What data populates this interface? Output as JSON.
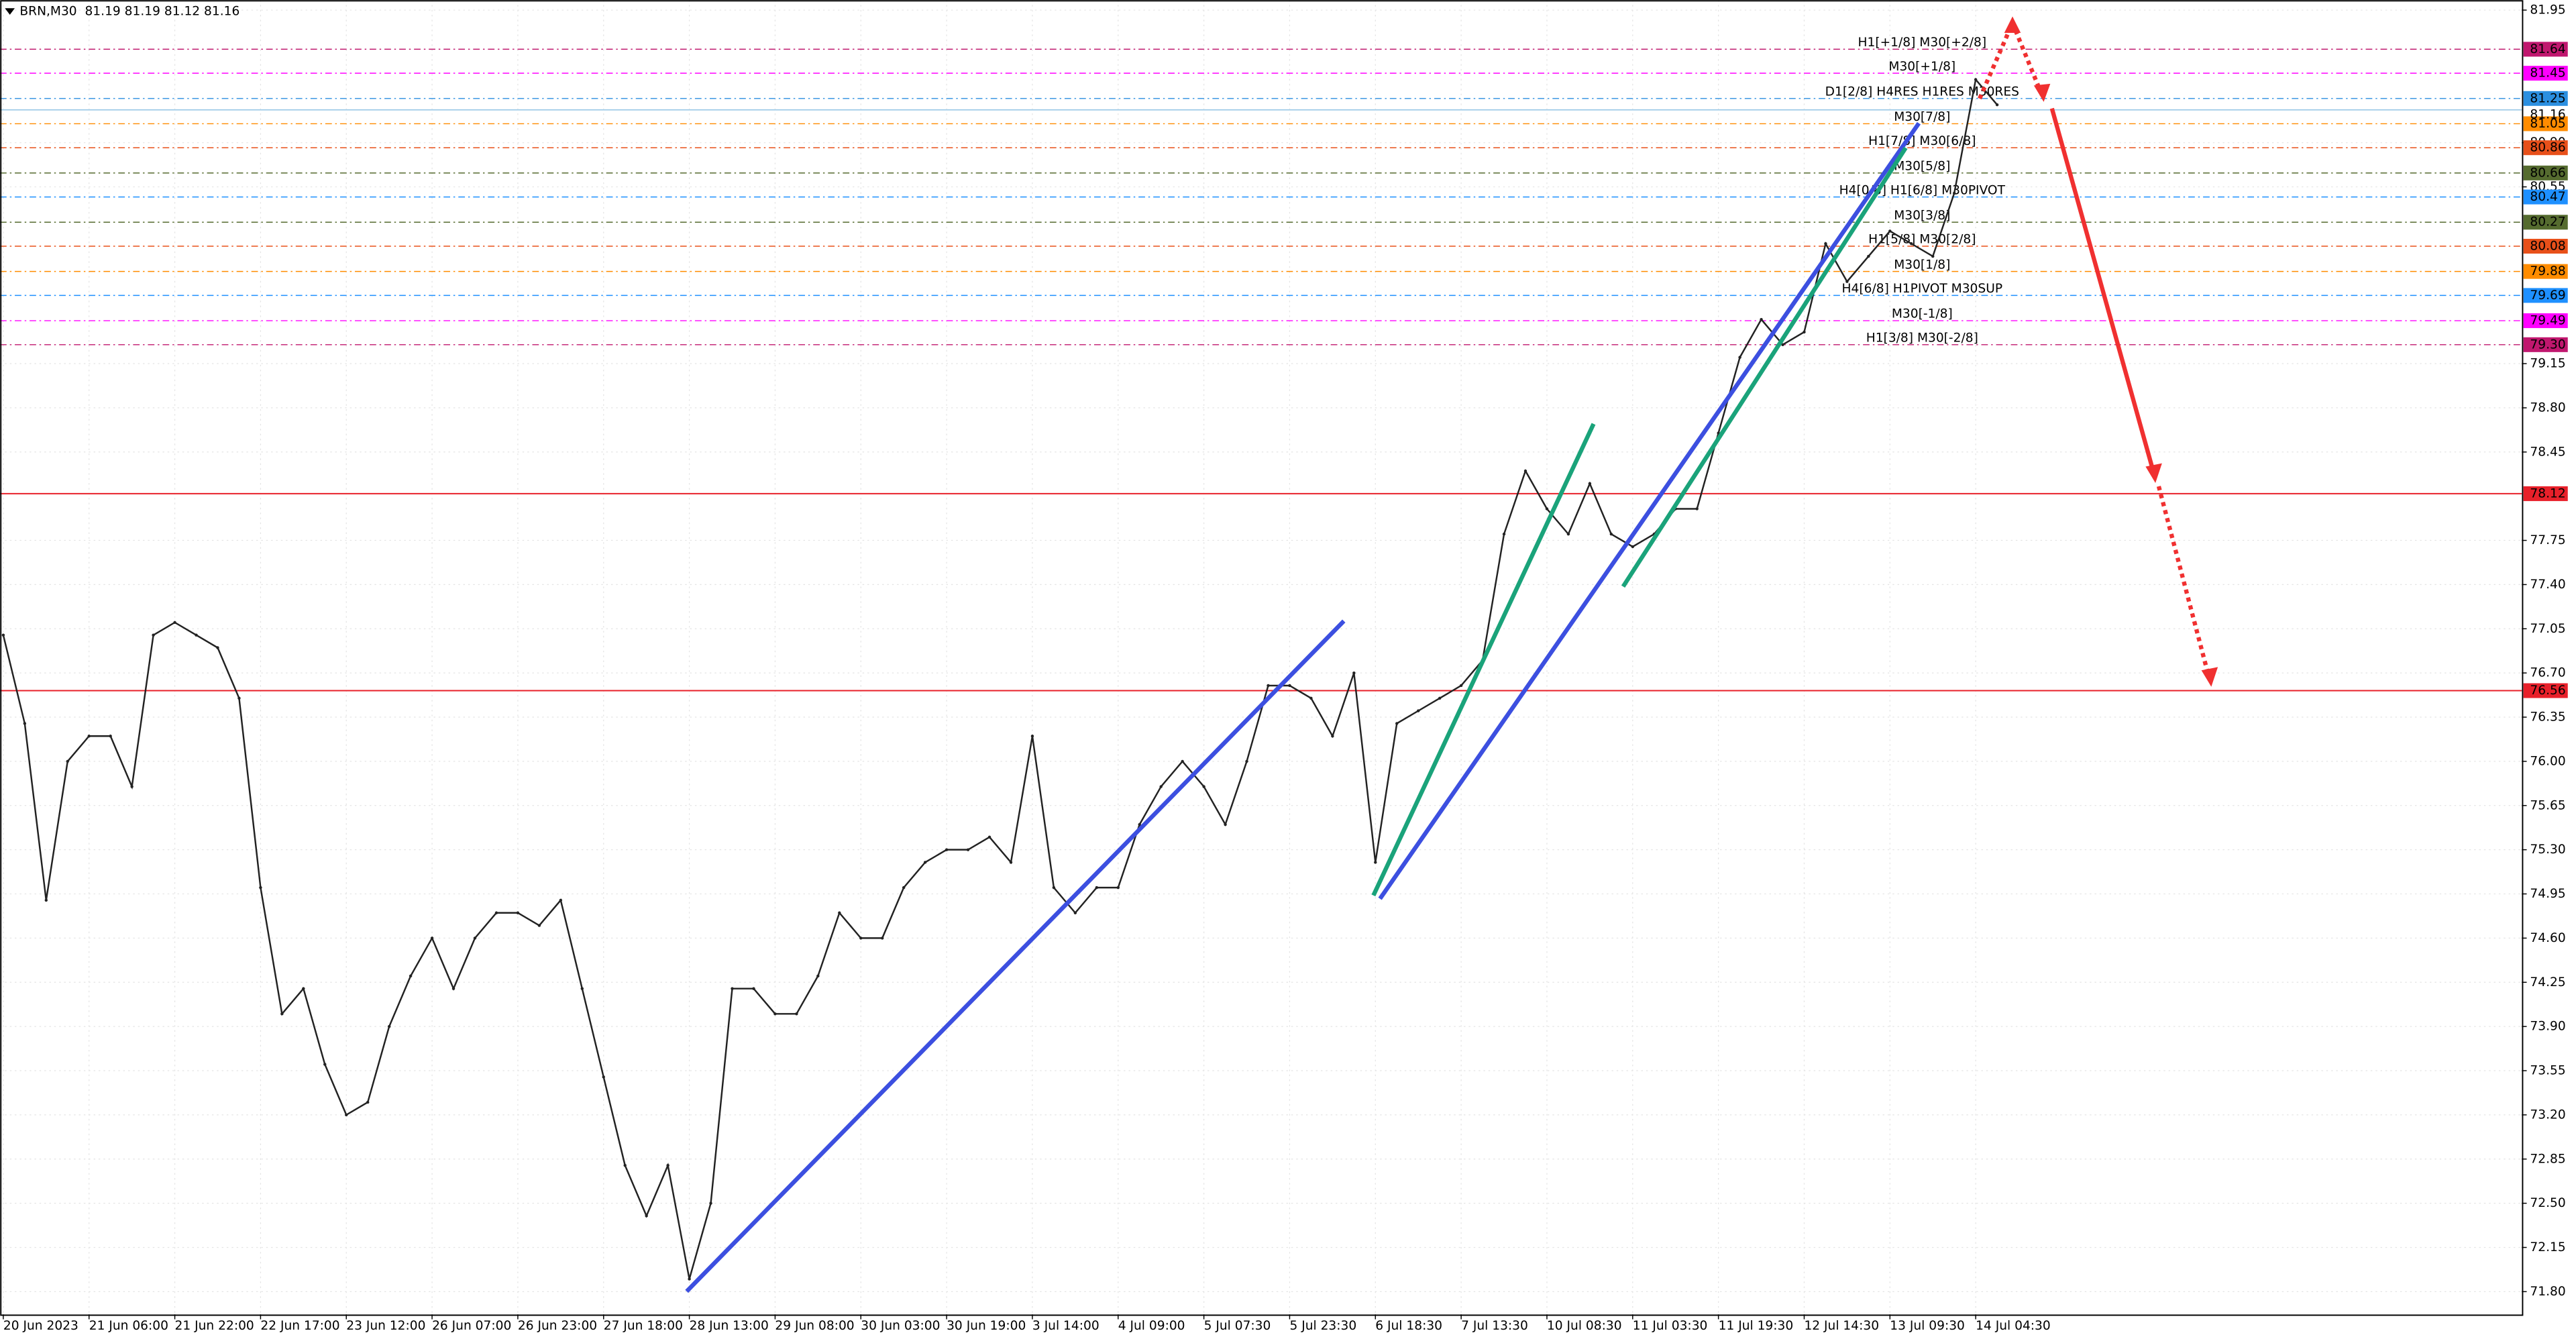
{
  "chart_data": {
    "type": "line",
    "header": "BRN,M30  81.19 81.19 81.12 81.16",
    "color": "#222222",
    "grid": true,
    "ylim": [
      71.62,
      82.03
    ],
    "yticks": [
      81.95,
      {
        "value": 80.9,
        "label": "80.90"
      },
      80.55,
      79.15,
      {
        "value": 78.8,
        "label": "78.80"
      },
      78.45,
      77.75,
      {
        "value": 77.4,
        "label": "77.40"
      },
      77.05,
      {
        "value": 76.7,
        "label": "76.70"
      },
      76.35,
      {
        "value": 76,
        "label": "76.00"
      },
      75.65,
      {
        "value": 75.3,
        "label": "75.30"
      },
      74.95,
      {
        "value": 74.6,
        "label": "74.60"
      },
      74.25,
      {
        "value": 73.9,
        "label": "73.90"
      },
      73.55,
      {
        "value": 73.2,
        "label": "73.20"
      },
      72.85,
      {
        "value": 72.5,
        "label": "72.50"
      },
      72.15,
      {
        "value": 71.8,
        "label": "71.80"
      }
    ],
    "categories": [
      "20 Jun 2023",
      null,
      null,
      null,
      "21 Jun 06:00",
      null,
      null,
      null,
      "21 Jun 22:00",
      null,
      null,
      null,
      "22 Jun 17:00",
      null,
      null,
      null,
      "23 Jun 12:00",
      null,
      null,
      null,
      "26 Jun 07:00",
      null,
      null,
      null,
      "26 Jun 23:00",
      null,
      null,
      null,
      "27 Jun 18:00",
      null,
      null,
      null,
      "28 Jun 13:00",
      null,
      null,
      null,
      "29 Jun 08:00",
      null,
      null,
      null,
      "30 Jun 03:00",
      null,
      null,
      null,
      "30 Jun 19:00",
      null,
      null,
      null,
      "3 Jul 14:00",
      null,
      null,
      null,
      "4 Jul 09:00",
      null,
      null,
      null,
      "5 Jul 07:30",
      null,
      null,
      null,
      "5 Jul 23:30",
      null,
      null,
      null,
      "6 Jul 18:30",
      null,
      null,
      null,
      "7 Jul 13:30",
      null,
      null,
      null,
      "10 Jul 08:30",
      null,
      null,
      null,
      "11 Jul 03:30",
      null,
      null,
      null,
      "11 Jul 19:30",
      null,
      null,
      null,
      "12 Jul 14:30",
      null,
      null,
      null,
      "13 Jul 09:30",
      null,
      null,
      null,
      "14 Jul 04:30",
      null
    ],
    "values": [
      77.0,
      76.3,
      74.9,
      76.0,
      76.2,
      76.2,
      75.8,
      77.0,
      77.1,
      77.0,
      76.9,
      76.5,
      75.0,
      74.0,
      74.2,
      73.6,
      73.2,
      73.3,
      73.9,
      74.3,
      74.6,
      74.2,
      74.6,
      74.8,
      74.8,
      74.7,
      74.9,
      74.2,
      73.5,
      72.8,
      72.4,
      72.8,
      71.9,
      72.5,
      74.2,
      74.2,
      74.0,
      74.0,
      74.3,
      74.8,
      74.6,
      74.6,
      75.0,
      75.2,
      75.3,
      75.3,
      75.4,
      75.2,
      76.2,
      75.0,
      74.8,
      75.0,
      75.0,
      75.5,
      75.8,
      76.0,
      75.8,
      75.5,
      76.0,
      76.6,
      76.6,
      76.5,
      76.2,
      76.7,
      75.2,
      76.3,
      76.4,
      76.5,
      76.6,
      76.8,
      77.8,
      78.3,
      78.0,
      77.8,
      78.2,
      77.8,
      77.7,
      77.8,
      78.0,
      78.0,
      78.6,
      79.2,
      79.5,
      79.3,
      79.4,
      80.1,
      79.8,
      80.0,
      80.2,
      80.1,
      80.0,
      80.5,
      81.4,
      81.2
    ],
    "current_price": 81.16,
    "levels": [
      {
        "value": 81.64,
        "value_label": "81.64",
        "label": "H1[+1/8] M30[+2/8]",
        "color": "#c0176e"
      },
      {
        "value": 81.45,
        "value_label": "81.45",
        "label": "M30[+1/8]",
        "color": "#ff00ff"
      },
      {
        "value": 81.25,
        "value_label": "81.25",
        "label": "D1[2/8] H4RES H1RES M30RES",
        "color": "#2b8fe0"
      },
      {
        "value": 81.05,
        "value_label": "81.05",
        "label": "M30[7/8]",
        "color": "#ff8c00"
      },
      {
        "value": 80.86,
        "value_label": "80.86",
        "label": "H1[7/8] M30[6/8]",
        "color": "#e8501a"
      },
      {
        "value": 80.66,
        "value_label": "80.66",
        "label": "M30[5/8]",
        "color": "#556b2f"
      },
      {
        "value": 80.47,
        "value_label": "80.47",
        "label": "H4[0/8] H1[6/8] M30PIVOT",
        "color": "#1e90ff"
      },
      {
        "value": 80.27,
        "value_label": "80.27",
        "label": "M30[3/8]",
        "color": "#556b2f"
      },
      {
        "value": 80.08,
        "value_label": "80.08",
        "label": "H1[5/8] M30[2/8]",
        "color": "#e8501a"
      },
      {
        "value": 79.88,
        "value_label": "79.88",
        "label": "M30[1/8]",
        "color": "#ff8c00"
      },
      {
        "value": 79.69,
        "value_label": "79.69",
        "label": "H4[6/8] H1PIVOT M30SUP",
        "color": "#1e90ff"
      },
      {
        "value": 79.49,
        "value_label": "79.49",
        "label": "M30[-1/8]",
        "color": "#ff00ff"
      },
      {
        "value": 79.3,
        "value_label": "79.30",
        "label": "H1[3/8] M30[-2/8]",
        "color": "#c0176e"
      }
    ],
    "hlines": [
      {
        "value": 78.12,
        "color": "#e8202a"
      },
      {
        "value": 76.56,
        "color": "#e8202a"
      }
    ]
  }
}
